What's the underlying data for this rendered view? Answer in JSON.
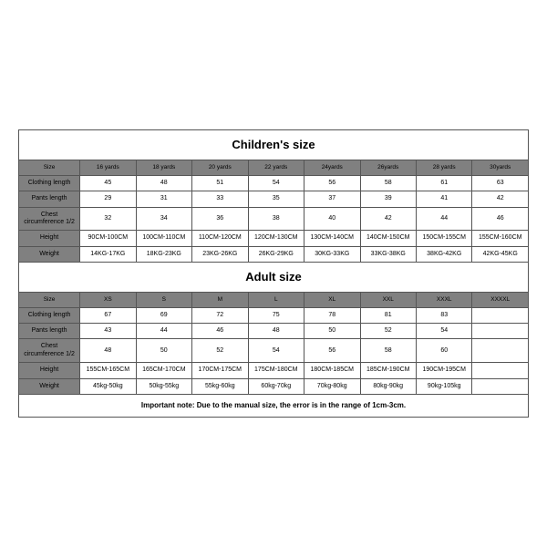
{
  "children": {
    "title": "Children's size",
    "header": [
      "Size",
      "16 yards",
      "18 yards",
      "20 yards",
      "22 yards",
      "24yards",
      "26yards",
      "28 yards",
      "30yards"
    ],
    "rows": [
      {
        "label": "Clothing length",
        "cells": [
          "45",
          "48",
          "51",
          "54",
          "56",
          "58",
          "61",
          "63"
        ]
      },
      {
        "label": "Pants length",
        "cells": [
          "29",
          "31",
          "33",
          "35",
          "37",
          "39",
          "41",
          "42"
        ]
      },
      {
        "label": "Chest circumference 1/2",
        "cells": [
          "32",
          "34",
          "36",
          "38",
          "40",
          "42",
          "44",
          "46"
        ]
      },
      {
        "label": "Height",
        "cells": [
          "90CM-100CM",
          "100CM-110CM",
          "110CM-120CM",
          "120CM-130CM",
          "130CM-140CM",
          "140CM-150CM",
          "150CM-155CM",
          "155CM-160CM"
        ]
      },
      {
        "label": "Weight",
        "cells": [
          "14KG-17KG",
          "18KG-23KG",
          "23KG-26KG",
          "26KG-29KG",
          "30KG-33KG",
          "33KG-38KG",
          "38KG-42KG",
          "42KG-45KG"
        ]
      }
    ]
  },
  "adult": {
    "title": "Adult size",
    "header": [
      "Size",
      "XS",
      "S",
      "M",
      "L",
      "XL",
      "XXL",
      "XXXL",
      "XXXXL"
    ],
    "rows": [
      {
        "label": "Clothing length",
        "cells": [
          "67",
          "69",
          "72",
          "75",
          "78",
          "81",
          "83",
          ""
        ]
      },
      {
        "label": "Pants length",
        "cells": [
          "43",
          "44",
          "46",
          "48",
          "50",
          "52",
          "54",
          ""
        ]
      },
      {
        "label": "Chest circumference 1/2",
        "cells": [
          "48",
          "50",
          "52",
          "54",
          "56",
          "58",
          "60",
          ""
        ]
      },
      {
        "label": "Height",
        "cells": [
          "155CM-165CM",
          "165CM-170CM",
          "170CM-175CM",
          "175CM-180CM",
          "180CM-185CM",
          "185CM-190CM",
          "190CM-195CM",
          ""
        ]
      },
      {
        "label": "Weight",
        "cells": [
          "45kg-50kg",
          "50kg-55kg",
          "55kg-60kg",
          "60kg-70kg",
          "70kg-80kg",
          "80kg-90kg",
          "90kg-105kg",
          ""
        ]
      }
    ]
  },
  "note": "Important note: Due to the manual size, the error is in the range of 1cm-3cm.",
  "style": {
    "header_bg": "#808080",
    "adult_size_bg": "#cccccc",
    "border_color": "#555555",
    "page_bg": "#ffffff"
  }
}
